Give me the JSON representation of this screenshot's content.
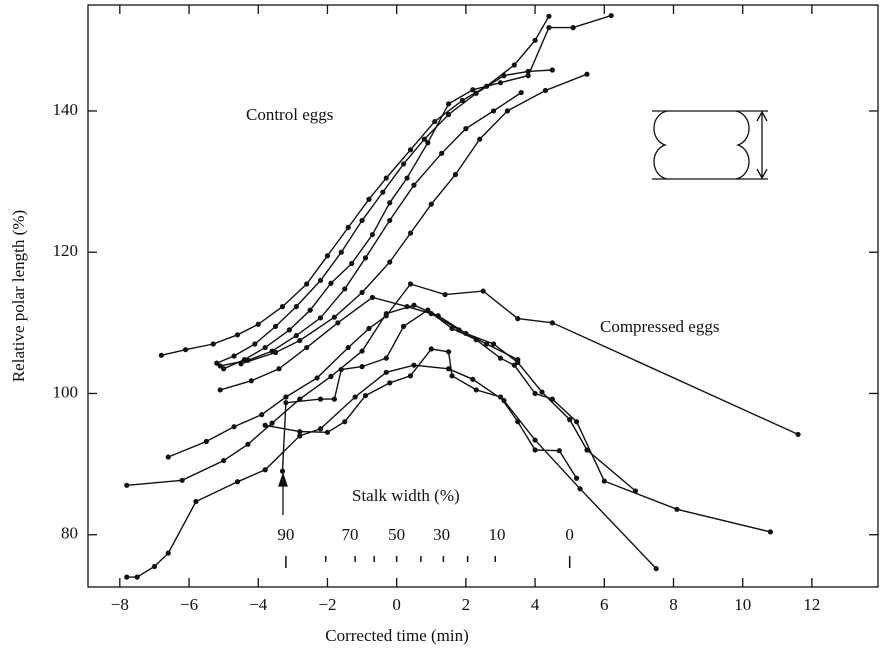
{
  "chart_data": {
    "type": "line",
    "x_label": "Corrected time (min)",
    "y_label": "Relative polar length (%)",
    "xlim": [
      -8.92,
      13.91
    ],
    "ylim": [
      72.6,
      155
    ],
    "xticks": [
      {
        "value": -8,
        "label": "−8"
      },
      {
        "value": -6,
        "label": "−6"
      },
      {
        "value": -4,
        "label": "−4"
      },
      {
        "value": -2,
        "label": "−2"
      },
      0,
      2,
      4,
      6,
      8,
      10,
      12
    ],
    "yticks": [
      80,
      100,
      120,
      140
    ],
    "color": "#111111",
    "annotations": [
      "Control eggs",
      "Compressed eggs",
      "Stalk width (%)"
    ],
    "stalk_labels": [
      {
        "value": -3.2,
        "label": "90"
      },
      {
        "value": -1.35,
        "label": "70"
      },
      {
        "value": 0,
        "label": "50"
      },
      {
        "value": 1.3,
        "label": "30"
      },
      {
        "value": 2.9,
        "label": "10"
      },
      {
        "value": 5.0,
        "label": "0"
      }
    ],
    "stalk_ticks": [
      -3.2,
      -2.05,
      -1.2,
      -0.65,
      0,
      0.7,
      1.35,
      2.05,
      2.85,
      5.0
    ],
    "series": [
      {
        "x": [
          -6.8,
          -6.1,
          -5.3,
          -4.6,
          -4.0,
          -3.3,
          -2.6,
          -2.0,
          -1.4,
          -0.8,
          -0.3,
          0.4,
          1.1,
          1.9,
          2.6,
          3.4,
          4.0,
          4.4
        ],
        "values": [
          105.4,
          106.2,
          107.0,
          108.3,
          109.8,
          112.3,
          115.5,
          119.5,
          123.5,
          127.5,
          130.5,
          134.5,
          138.5,
          141.5,
          143.5,
          146.5,
          150,
          153.4
        ]
      },
      {
        "x": [
          -5.2,
          -4.7,
          -4.1,
          -3.5,
          -2.9,
          -2.2,
          -1.6,
          -1.0,
          -0.4,
          0.2,
          0.8,
          1.5,
          2.3,
          3.1,
          3.8,
          4.5
        ],
        "values": [
          104.3,
          105.3,
          107,
          109.5,
          112.3,
          116,
          120,
          124.5,
          128.5,
          132.5,
          136,
          139.5,
          142.5,
          145,
          145.6,
          145.8
        ]
      },
      {
        "x": [
          -5,
          -4.4,
          -3.8,
          -3.1,
          -2.5,
          -1.9,
          -1.3,
          -0.7,
          -0.2,
          0.3,
          0.9,
          1.5,
          2.2,
          3.0,
          3.8,
          4.4,
          5.1,
          6.2
        ],
        "values": [
          103.5,
          104.8,
          106.5,
          109,
          111.8,
          115.6,
          118.4,
          122.5,
          127,
          130.5,
          135.5,
          141,
          143,
          144,
          145,
          151.8,
          151.8,
          153.5
        ]
      },
      {
        "x": [
          -5.1,
          -4.3,
          -3.6,
          -2.9,
          -2.2,
          -1.5,
          -0.9,
          -0.2,
          0.5,
          1.3,
          2.0,
          2.8,
          3.6
        ],
        "values": [
          103.9,
          104.7,
          106,
          108.2,
          110.7,
          114.8,
          119.2,
          124.5,
          129.5,
          134,
          137.5,
          140,
          142.6
        ]
      },
      {
        "x": [
          -4.5,
          -3.5,
          -2.8,
          -1.8,
          -1.0,
          -0.2,
          0.4,
          1.0,
          1.7,
          2.4,
          3.2,
          4.3,
          5.5
        ],
        "values": [
          104.2,
          105.8,
          107.5,
          110.8,
          114.3,
          118.6,
          122.7,
          126.8,
          131,
          136,
          140,
          142.9,
          145.2
        ]
      },
      {
        "x": [
          -6.6,
          -5.5,
          -4.7,
          -3.9,
          -3.2,
          -2.3,
          -1.4,
          -0.8,
          -0.3,
          0.4,
          1.4,
          2.5,
          3.5,
          4.5,
          11.6
        ],
        "values": [
          91,
          93.2,
          95.3,
          97,
          99.5,
          102.2,
          106.5,
          109.2,
          111,
          115.5,
          114,
          114.5,
          110.6,
          110,
          94.2
        ]
      },
      {
        "x": [
          -7.8,
          -6.2,
          -5.0,
          -4.3,
          -3.6,
          -2.8,
          -1.9,
          -1.0,
          -0.3,
          0.5,
          1.2,
          2.0,
          2.8,
          3.5,
          4.2,
          5.0,
          5.5,
          6.9
        ],
        "values": [
          87,
          87.7,
          90.5,
          92.8,
          95.8,
          99.2,
          102.4,
          106,
          111.3,
          112.5,
          111,
          108.5,
          107,
          104.4,
          100.2,
          96.3,
          92,
          86.2
        ]
      },
      {
        "x": [
          -5.1,
          -4.2,
          -3.4,
          -2.6,
          -1.7,
          -0.7,
          0.3,
          1.0,
          1.8,
          2.6,
          3.5
        ],
        "values": [
          100.5,
          101.8,
          103.5,
          106.5,
          110,
          113.6,
          112.3,
          111.3,
          109,
          107,
          104.8
        ]
      },
      {
        "x": [
          -3.3,
          -3.2,
          -2.2,
          -1.8,
          -1.6,
          -1.0,
          -0.3,
          0.2,
          0.9,
          1.6,
          2.3,
          3.0,
          3.4,
          4.0,
          4.5,
          5.2,
          6.0,
          8.1,
          10.8
        ],
        "values": [
          89,
          98.7,
          99.2,
          99.2,
          103.4,
          103.8,
          105,
          109.5,
          111.8,
          109.2,
          107.6,
          105,
          104,
          100,
          99.2,
          96,
          87.6,
          83.6,
          80.4
        ]
      },
      {
        "x": [
          -7.8,
          -7.5,
          -7.0,
          -6.6,
          -5.8,
          -4.6,
          -3.8,
          -2.8,
          -2.2,
          -1.2,
          -0.3,
          0.5,
          1.5,
          2.2,
          3.1,
          4.0,
          5.3,
          7.5
        ],
        "values": [
          74,
          74,
          75.5,
          77.4,
          84.7,
          87.5,
          89.2,
          94,
          95,
          99.5,
          103,
          104,
          103.5,
          102,
          99,
          93.4,
          86.5,
          75.2
        ]
      },
      {
        "x": [
          -3.8,
          -2.8,
          -2.0,
          -1.5,
          -0.9,
          -0.2,
          0.4,
          1.0,
          1.5,
          1.6,
          2.3,
          3.0,
          3.5,
          4.0,
          4.7,
          5.2
        ],
        "values": [
          95.5,
          94.6,
          94.5,
          96,
          99.7,
          101.5,
          102.5,
          106.3,
          105.9,
          102.5,
          100.5,
          99.5,
          96,
          92,
          91.9,
          88
        ]
      }
    ]
  }
}
